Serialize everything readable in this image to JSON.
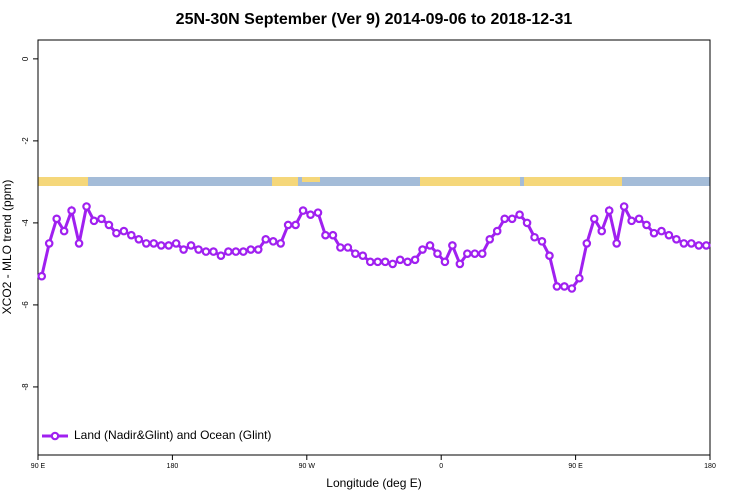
{
  "chart_data": {
    "type": "line",
    "title": "25N-30N September (Ver 9)   2014-09-06 to 2018-12-31",
    "xlabel": "Longitude (deg E)",
    "ylabel": "XCO2 - MLO trend (ppm)",
    "x": [
      92.5,
      97.5,
      102.5,
      107.5,
      112.5,
      117.5,
      122.5,
      127.5,
      132.5,
      137.5,
      142.5,
      147.5,
      152.5,
      157.5,
      162.5,
      167.5,
      172.5,
      177.5,
      182.5,
      187.5,
      192.5,
      197.5,
      202.5,
      207.5,
      212.5,
      217.5,
      222.5,
      227.5,
      232.5,
      237.5,
      242.5,
      247.5,
      252.5,
      257.5,
      262.5,
      267.5,
      272.5,
      277.5,
      282.5,
      287.5,
      292.5,
      297.5,
      302.5,
      307.5,
      312.5,
      317.5,
      322.5,
      327.5,
      332.5,
      337.5,
      342.5,
      347.5,
      352.5,
      357.5,
      362.5,
      367.5,
      372.5,
      377.5,
      382.5,
      387.5,
      392.5,
      397.5,
      402.5,
      407.5,
      412.5,
      417.5,
      422.5,
      427.5,
      432.5,
      437.5,
      442.5,
      447.5,
      452.5,
      457.5,
      462.5,
      467.5,
      472.5,
      477.5,
      482.5,
      487.5,
      492.5,
      497.5,
      502.5,
      507.5,
      512.5,
      517.5,
      522.5,
      527.5,
      532.5,
      537.5
    ],
    "series": [
      {
        "name": "Land (Nadir&Glint) and Ocean (Glint)",
        "color": "#a020f0",
        "values": [
          -5.3,
          -4.5,
          -3.9,
          -4.2,
          -3.7,
          -4.5,
          -3.6,
          -3.95,
          -3.9,
          -4.05,
          -4.25,
          -4.2,
          -4.3,
          -4.4,
          -4.5,
          -4.5,
          -4.55,
          -4.55,
          -4.5,
          -4.65,
          -4.55,
          -4.65,
          -4.7,
          -4.7,
          -4.8,
          -4.7,
          -4.7,
          -4.7,
          -4.65,
          -4.65,
          -4.4,
          -4.45,
          -4.5,
          -4.05,
          -4.05,
          -3.7,
          -3.8,
          -3.75,
          -4.3,
          -4.3,
          -4.6,
          -4.6,
          -4.75,
          -4.8,
          -4.95,
          -4.95,
          -4.95,
          -5.0,
          -4.9,
          -4.95,
          -4.9,
          -4.65,
          -4.55,
          -4.75,
          -4.95,
          -4.55,
          -5.0,
          -4.75,
          -4.75,
          -4.75,
          -4.4,
          -4.2,
          -3.9,
          -3.9,
          -3.8,
          -4.0,
          -4.35,
          -4.45,
          -4.8,
          -5.55,
          -5.55,
          -5.6,
          -5.35,
          -4.5,
          -3.9,
          -4.2,
          -3.7,
          -4.5,
          -3.6,
          -3.95,
          -3.9,
          -4.05,
          -4.25,
          -4.2,
          -4.3,
          -4.4,
          -4.5,
          -4.5,
          -4.55,
          -4.55
        ]
      }
    ],
    "xlim": [
      90,
      540
    ],
    "xticks": [
      {
        "value": 90,
        "label": "90 E"
      },
      180,
      {
        "value": 270,
        "label": "90 W"
      },
      {
        "value": 360,
        "label": "0"
      },
      {
        "value": 450,
        "label": "90 E"
      },
      {
        "value": 540,
        "label": "180"
      }
    ],
    "ylim": [
      -9.66,
      0.46
    ],
    "yticks": [
      0,
      -2,
      -4,
      -6,
      -8
    ],
    "legend": "bottom-left"
  }
}
